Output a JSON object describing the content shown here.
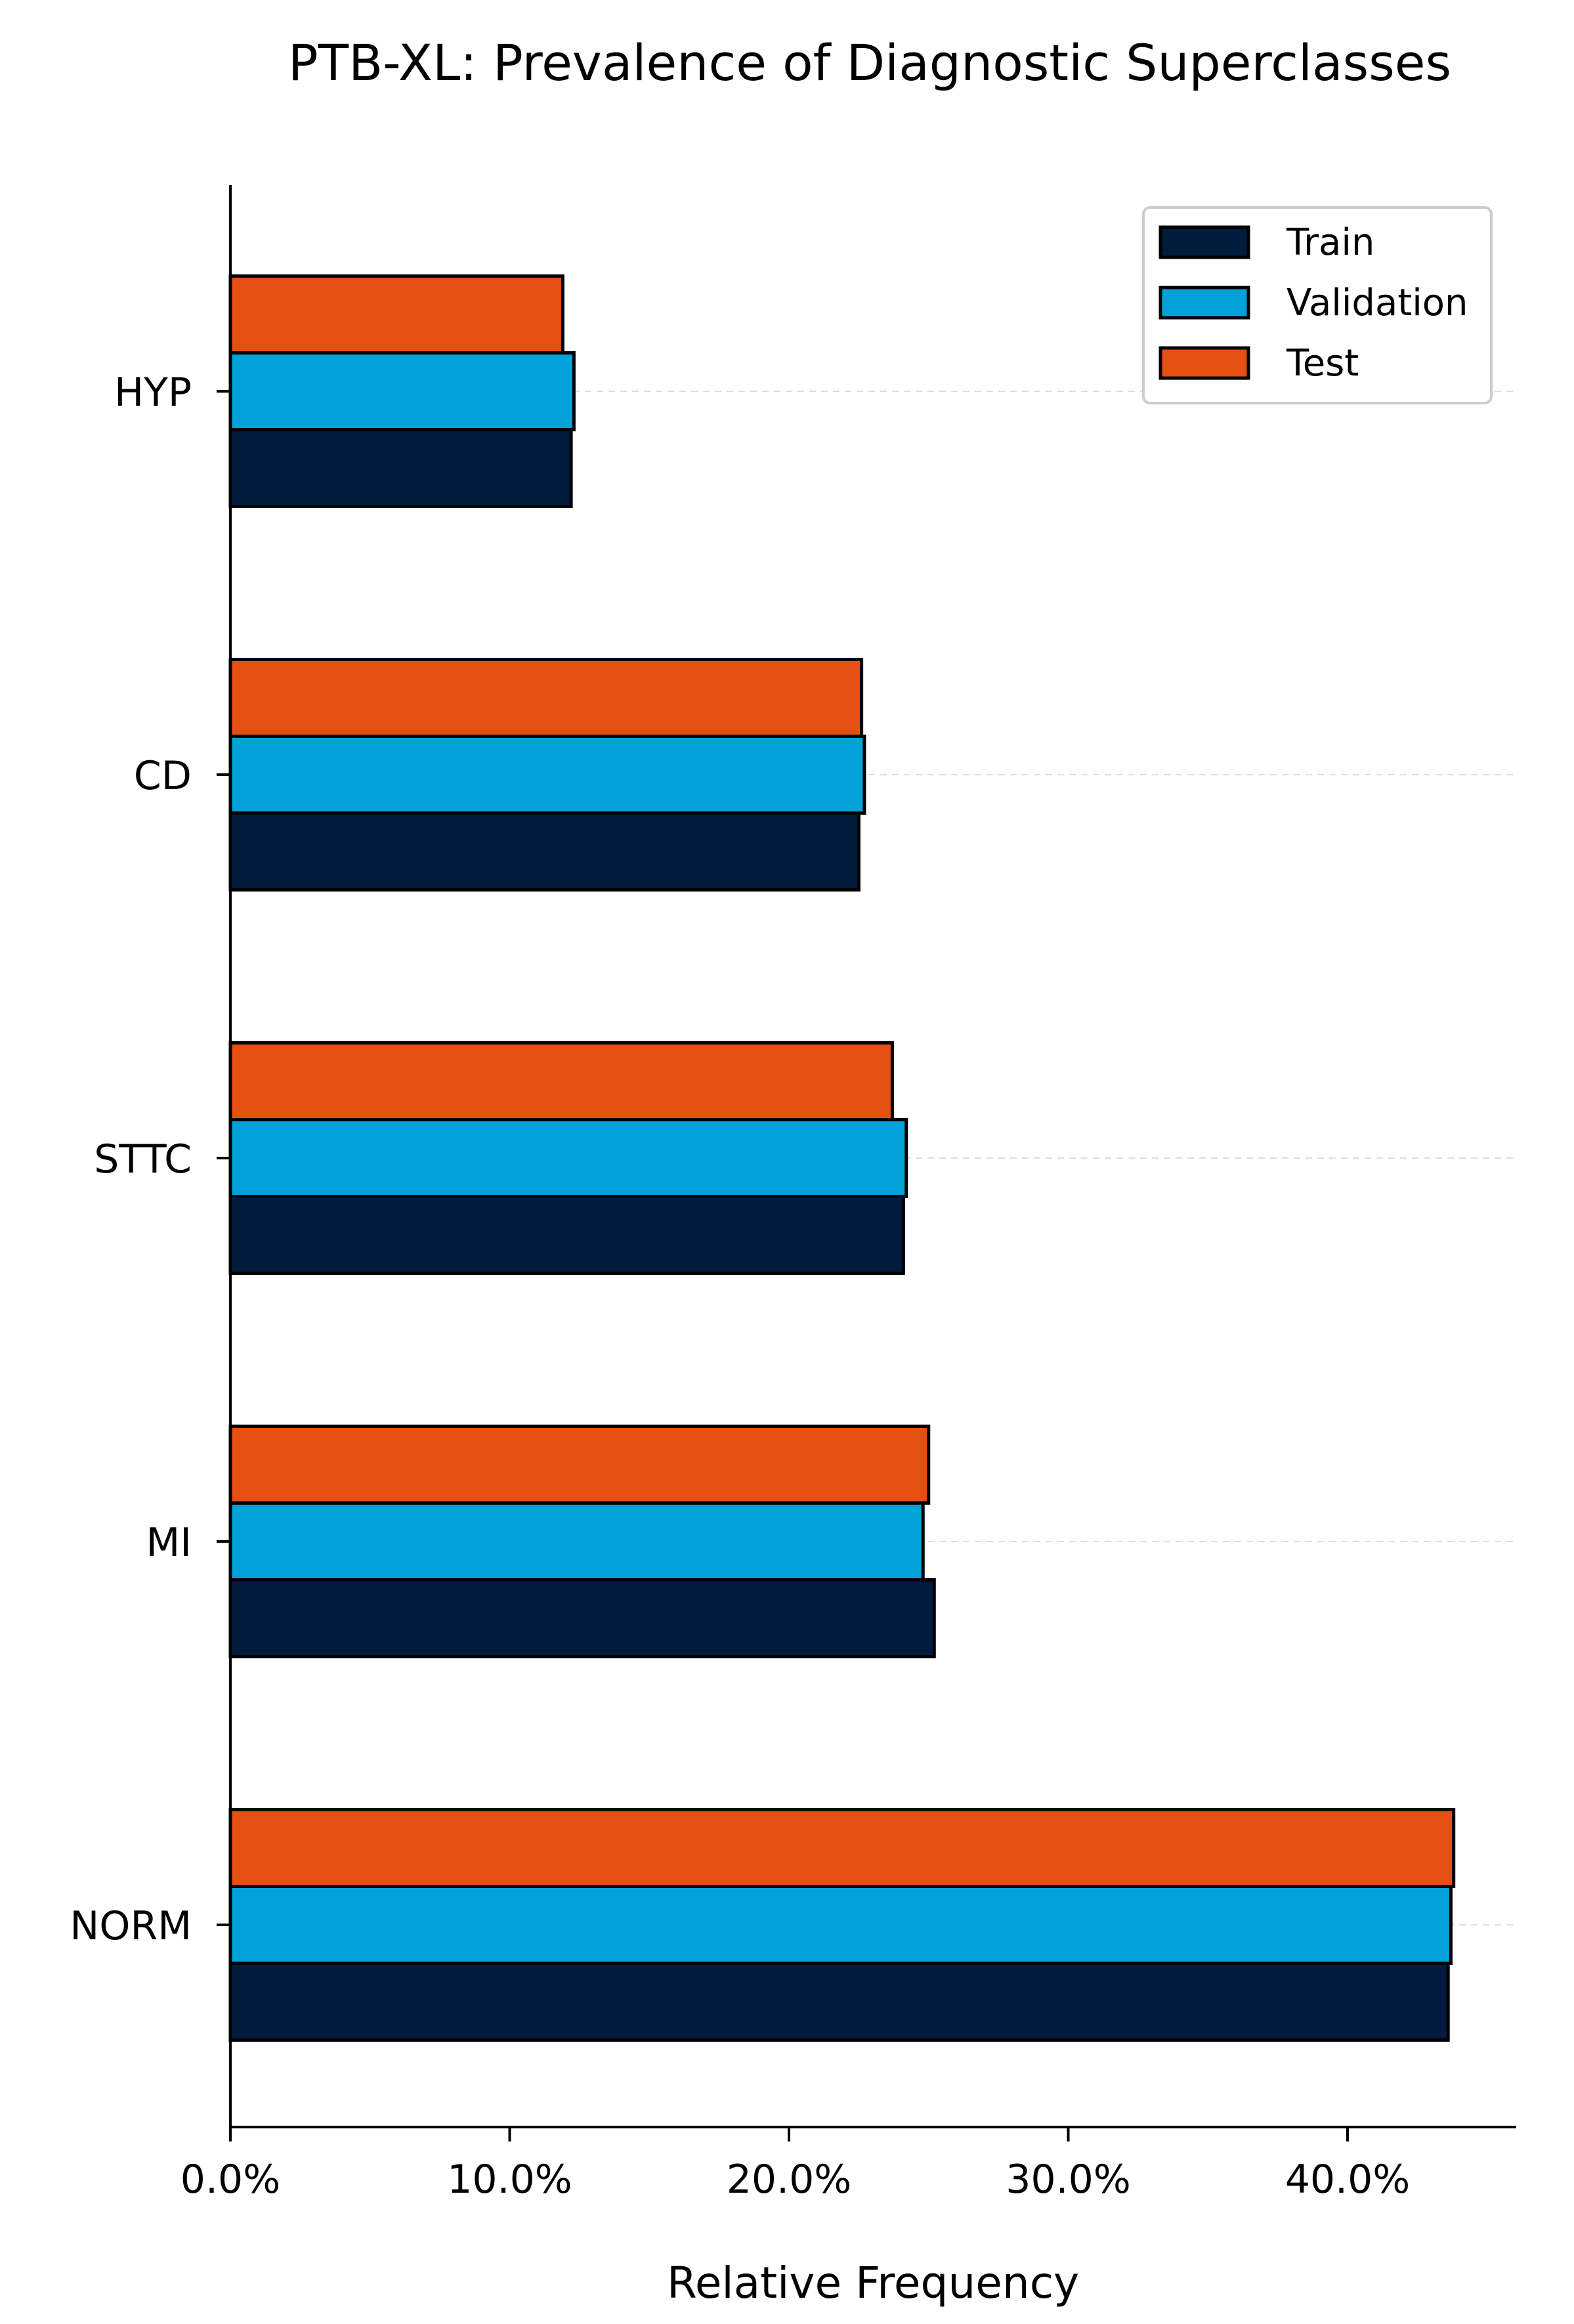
{
  "chart_data": {
    "type": "bar",
    "orientation": "horizontal",
    "title": "PTB-XL: Prevalence of Diagnostic Superclasses",
    "xlabel": "Relative Frequency",
    "ylabel": "",
    "categories": [
      "NORM",
      "MI",
      "STTC",
      "CD",
      "HYP"
    ],
    "series": [
      {
        "name": "Train",
        "color": "#001c3d",
        "values": [
          43.6,
          25.2,
          24.1,
          22.5,
          12.2
        ]
      },
      {
        "name": "Validation",
        "color": "#00a2d9",
        "values": [
          43.7,
          24.8,
          24.2,
          22.7,
          12.3
        ]
      },
      {
        "name": "Test",
        "color": "#e54f12",
        "values": [
          43.8,
          25.0,
          23.7,
          22.6,
          11.9
        ]
      }
    ],
    "xlim": [
      0,
      46
    ],
    "xticks": [
      0,
      10,
      20,
      30,
      40
    ],
    "xtick_labels": [
      "0.0%",
      "10.0%",
      "20.0%",
      "30.0%",
      "40.0%"
    ],
    "legend_position": "top-right",
    "grid": "horizontal dashed, light"
  }
}
